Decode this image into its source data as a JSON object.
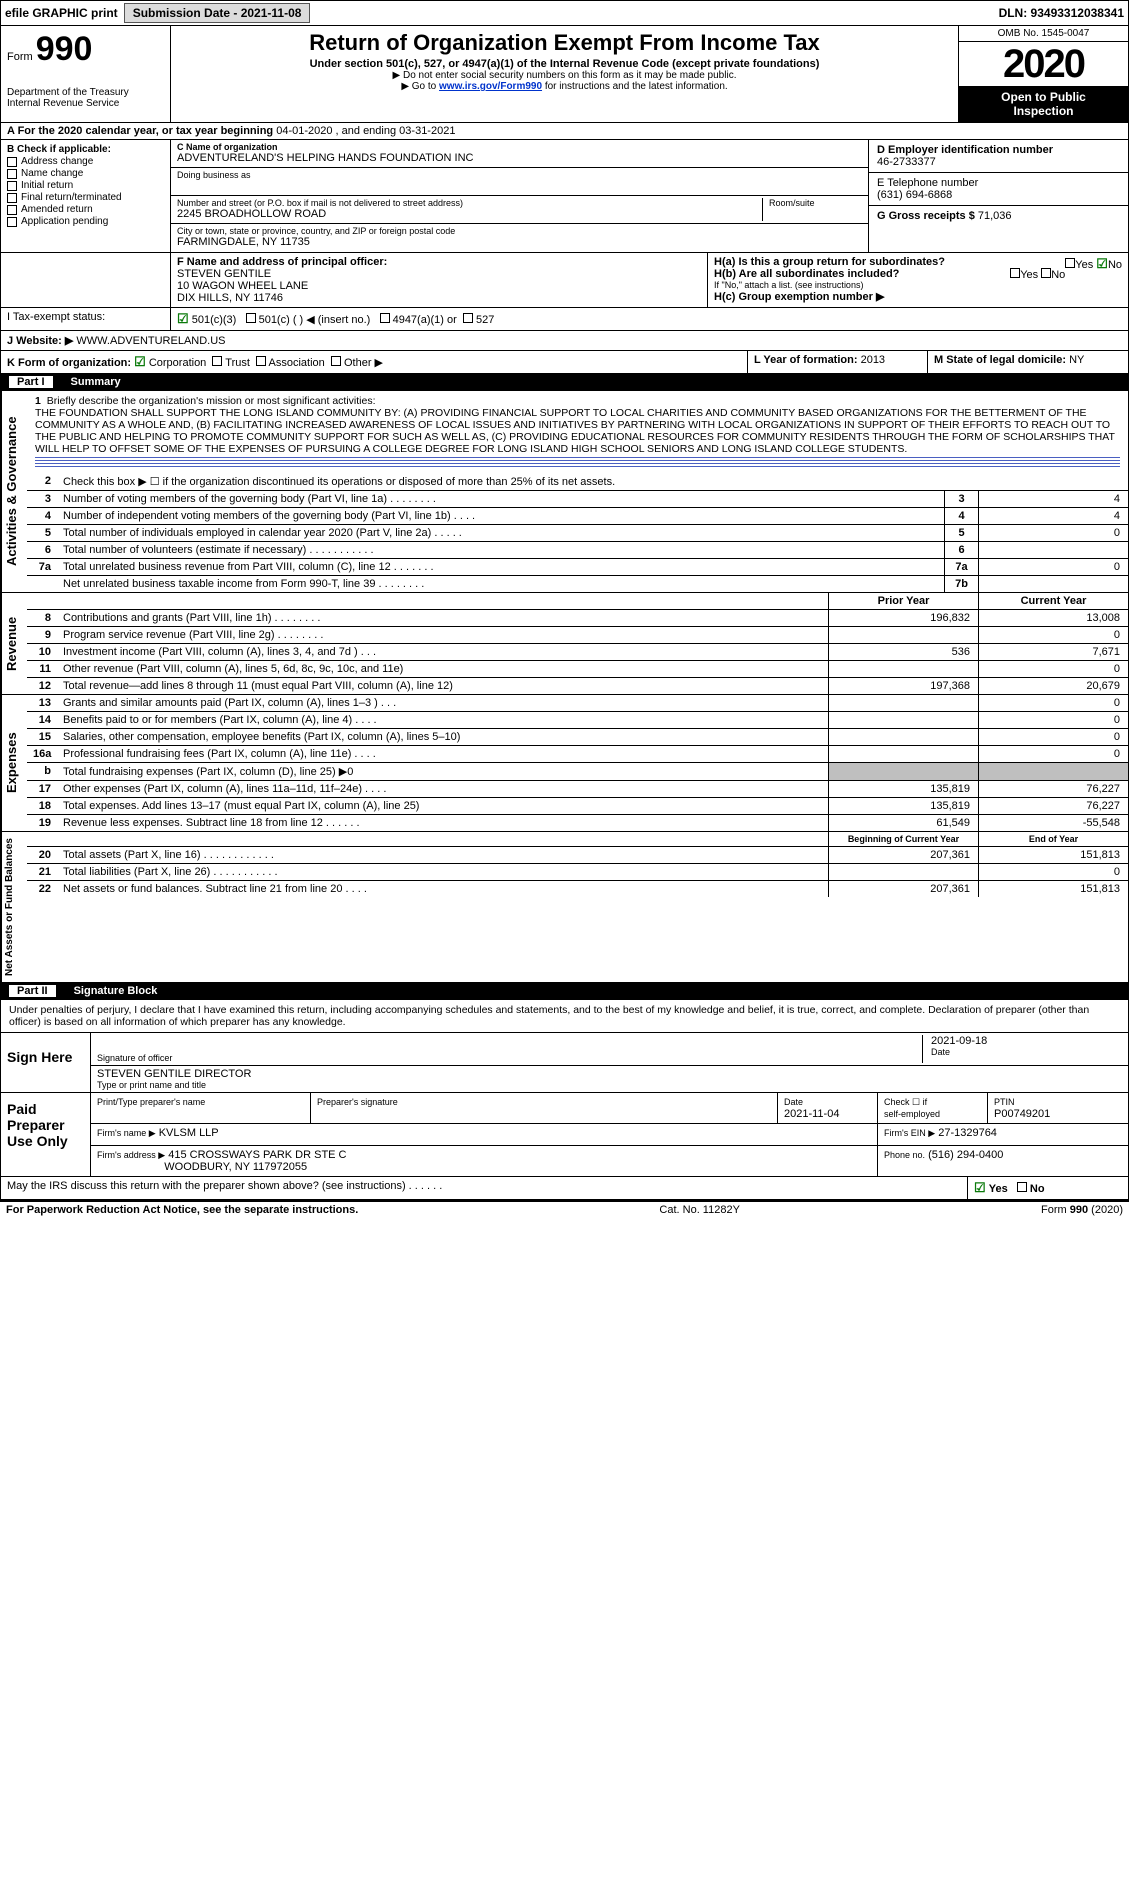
{
  "top": {
    "efile": "efile GRAPHIC print",
    "submission_label": "Submission Date - 2021-11-08",
    "dln": "DLN: 93493312038341"
  },
  "header": {
    "form_prefix": "Form",
    "form_no": "990",
    "dept1": "Department of the Treasury",
    "dept2": "Internal Revenue Service",
    "title": "Return of Organization Exempt From Income Tax",
    "subtitle": "Under section 501(c), 527, or 4947(a)(1) of the Internal Revenue Code (except private foundations)",
    "note1": "▶ Do not enter social security numbers on this form as it may be made public.",
    "note2_pre": "▶ Go to ",
    "note2_link": "www.irs.gov/Form990",
    "note2_post": " for instructions and the latest information.",
    "omb": "OMB No. 1545-0047",
    "year": "2020",
    "open1": "Open to Public",
    "open2": "Inspection"
  },
  "period": {
    "label_a": "A For the 2020 calendar year, or tax year beginning ",
    "begin": "04-01-2020",
    "mid": " , and ending ",
    "end": "03-31-2021"
  },
  "colB": {
    "title": "B Check if applicable:",
    "items": [
      "Address change",
      "Name change",
      "Initial return",
      "Final return/terminated",
      "Amended return",
      "Application pending"
    ]
  },
  "colC": {
    "name_label": "C Name of organization",
    "name": "ADVENTURELAND'S HELPING HANDS FOUNDATION INC",
    "dba_label": "Doing business as",
    "dba": "",
    "street_label": "Number and street (or P.O. box if mail is not delivered to street address)",
    "street": "2245 BROADHOLLOW ROAD",
    "room_label": "Room/suite",
    "city_label": "City or town, state or province, country, and ZIP or foreign postal code",
    "city": "FARMINGDALE, NY  11735"
  },
  "colD": {
    "d_label": "D Employer identification number",
    "ein": "46-2733377",
    "e_label": "E Telephone number",
    "phone": "(631) 694-6868",
    "g_label": "G Gross receipts $",
    "gross": "71,036"
  },
  "rowF": {
    "f_label": "F  Name and address of principal officer:",
    "name": "STEVEN GENTILE",
    "addr1": "10 WAGON WHEEL LANE",
    "addr2": "DIX HILLS, NY  11746"
  },
  "rowH": {
    "ha": "H(a)  Is this a group return for subordinates?",
    "hb": "H(b)  Are all subordinates included?",
    "hc_note": "If \"No,\" attach a list. (see instructions)",
    "hc": "H(c)  Group exemption number ▶",
    "yes": "Yes",
    "no": "No"
  },
  "rowI": {
    "label": "I  Tax-exempt status:",
    "opt1": "501(c)(3)",
    "opt2": "501(c) (   ) ◀ (insert no.)",
    "opt3": "4947(a)(1) or",
    "opt4": "527"
  },
  "rowJ": {
    "label": "J  Website: ▶",
    "val": "WWW.ADVENTURELAND.US"
  },
  "rowK": {
    "label": "K Form of organization:",
    "opts": [
      "Corporation",
      "Trust",
      "Association",
      "Other ▶"
    ]
  },
  "rowLM": {
    "l_label": "L Year of formation:",
    "l_val": "2013",
    "m_label": "M State of legal domicile:",
    "m_val": "NY"
  },
  "part1": {
    "tab": "Part I",
    "title": "Summary"
  },
  "mission": {
    "num": "1",
    "label": "Briefly describe the organization's mission or most significant activities:",
    "text": "THE FOUNDATION SHALL SUPPORT THE LONG ISLAND COMMUNITY BY: (A) PROVIDING FINANCIAL SUPPORT TO LOCAL CHARITIES AND COMMUNITY BASED ORGANIZATIONS FOR THE BETTERMENT OF THE COMMUNITY AS A WHOLE AND, (B) FACILITATING INCREASED AWARENESS OF LOCAL ISSUES AND INITIATIVES BY PARTNERING WITH LOCAL ORGANIZATIONS IN SUPPORT OF THEIR EFFORTS TO REACH OUT TO THE PUBLIC AND HELPING TO PROMOTE COMMUNITY SUPPORT FOR SUCH AS WELL AS, (C) PROVIDING EDUCATIONAL RESOURCES FOR COMMUNITY RESIDENTS THROUGH THE FORM OF SCHOLARSHIPS THAT WILL HELP TO OFFSET SOME OF THE EXPENSES OF PURSUING A COLLEGE DEGREE FOR LONG ISLAND HIGH SCHOOL SENIORS AND LONG ISLAND COLLEGE STUDENTS."
  },
  "activities": {
    "vlabel": "Activities & Governance",
    "line2": "Check this box ▶ ☐ if the organization discontinued its operations or disposed of more than 25% of its net assets.",
    "rows": [
      {
        "n": "3",
        "t": "Number of voting members of the governing body (Part VI, line 1a)  .    .    .    .    .    .    .    .",
        "m": "3",
        "v": "4"
      },
      {
        "n": "4",
        "t": "Number of independent voting members of the governing body (Part VI, line 1b)   .    .    .    .",
        "m": "4",
        "v": "4"
      },
      {
        "n": "5",
        "t": "Total number of individuals employed in calendar year 2020 (Part V, line 2a)  .    .    .    .    .",
        "m": "5",
        "v": "0"
      },
      {
        "n": "6",
        "t": "Total number of volunteers (estimate if necessary)  .    .    .    .    .    .    .    .    .    .    .",
        "m": "6",
        "v": ""
      },
      {
        "n": "7a",
        "t": "Total unrelated business revenue from Part VIII, column (C), line 12   .    .    .    .    .    .    .",
        "m": "7a",
        "v": "0"
      },
      {
        "n": "",
        "t": "Net unrelated business taxable income from Form 990-T, line 39  .    .    .    .    .    .    .    .",
        "m": "7b",
        "v": ""
      }
    ]
  },
  "revenue": {
    "vlabel": "Revenue",
    "header_prior": "Prior Year",
    "header_current": "Current Year",
    "rows": [
      {
        "n": "8",
        "t": "Contributions and grants (Part VIII, line 1h)   .    .    .    .    .    .    .    .",
        "p": "196,832",
        "c": "13,008"
      },
      {
        "n": "9",
        "t": "Program service revenue (Part VIII, line 2g)   .    .    .    .    .    .    .    .",
        "p": "",
        "c": "0"
      },
      {
        "n": "10",
        "t": "Investment income (Part VIII, column (A), lines 3, 4, and 7d )    .    .    .",
        "p": "536",
        "c": "7,671"
      },
      {
        "n": "11",
        "t": "Other revenue (Part VIII, column (A), lines 5, 6d, 8c, 9c, 10c, and 11e)",
        "p": "",
        "c": "0"
      },
      {
        "n": "12",
        "t": "Total revenue—add lines 8 through 11 (must equal Part VIII, column (A), line 12)",
        "p": "197,368",
        "c": "20,679"
      }
    ]
  },
  "expenses": {
    "vlabel": "Expenses",
    "rows": [
      {
        "n": "13",
        "t": "Grants and similar amounts paid (Part IX, column (A), lines 1–3 )   .    .    .",
        "p": "",
        "c": "0"
      },
      {
        "n": "14",
        "t": "Benefits paid to or for members (Part IX, column (A), line 4)  .    .    .    .",
        "p": "",
        "c": "0"
      },
      {
        "n": "15",
        "t": "Salaries, other compensation, employee benefits (Part IX, column (A), lines 5–10)",
        "p": "",
        "c": "0"
      },
      {
        "n": "16a",
        "t": "Professional fundraising fees (Part IX, column (A), line 11e)   .    .    .    .",
        "p": "",
        "c": "0"
      },
      {
        "n": "b",
        "t": "Total fundraising expenses (Part IX, column (D), line 25) ▶0",
        "p": "GREY",
        "c": "GREY"
      },
      {
        "n": "17",
        "t": "Other expenses (Part IX, column (A), lines 11a–11d, 11f–24e)   .    .    .    .",
        "p": "135,819",
        "c": "76,227"
      },
      {
        "n": "18",
        "t": "Total expenses. Add lines 13–17 (must equal Part IX, column (A), line 25)",
        "p": "135,819",
        "c": "76,227"
      },
      {
        "n": "19",
        "t": "Revenue less expenses. Subtract line 18 from line 12   .    .    .    .    .    .",
        "p": "61,549",
        "c": "-55,548"
      }
    ]
  },
  "netassets": {
    "vlabel": "Net Assets or Fund Balances",
    "header_begin": "Beginning of Current Year",
    "header_end": "End of Year",
    "rows": [
      {
        "n": "20",
        "t": "Total assets (Part X, line 16)  .    .    .    .    .    .    .    .    .    .    .    .",
        "p": "207,361",
        "c": "151,813"
      },
      {
        "n": "21",
        "t": "Total liabilities (Part X, line 26)   .    .    .    .    .    .    .    .    .    .    .",
        "p": "",
        "c": "0"
      },
      {
        "n": "22",
        "t": "Net assets or fund balances. Subtract line 21 from line 20    .    .    .    .",
        "p": "207,361",
        "c": "151,813"
      }
    ]
  },
  "part2": {
    "tab": "Part II",
    "title": "Signature Block",
    "penalty": "Under penalties of perjury, I declare that I have examined this return, including accompanying schedules and statements, and to the best of my knowledge and belief, it is true, correct, and complete. Declaration of preparer (other than officer) is based on all information of which preparer has any knowledge."
  },
  "sign": {
    "left": "Sign Here",
    "sig_label": "Signature of officer",
    "date_label": "Date",
    "date": "2021-09-18",
    "name": "STEVEN GENTILE DIRECTOR",
    "name_label": "Type or print name and title"
  },
  "paid": {
    "left1": "Paid",
    "left2": "Preparer",
    "left3": "Use Only",
    "h1": "Print/Type preparer's name",
    "h2": "Preparer's signature",
    "h3": "Date",
    "date": "2021-11-04",
    "h4a": "Check ☐ if",
    "h4b": "self-employed",
    "h5": "PTIN",
    "ptin": "P00749201",
    "firm_label": "Firm's name    ▶",
    "firm": "KVLSM LLP",
    "ein_label": "Firm's EIN ▶",
    "ein": "27-1329764",
    "addr_label": "Firm's address ▶",
    "addr1": "415 CROSSWAYS PARK DR STE C",
    "addr2": "WOODBURY, NY  117972055",
    "phone_label": "Phone no.",
    "phone": "(516) 294-0400"
  },
  "discuss": {
    "text": "May the IRS discuss this return with the preparer shown above? (see instructions)    .    .    .    .    .    .",
    "yes": "Yes",
    "no": "No"
  },
  "footer": {
    "left": "For Paperwork Reduction Act Notice, see the separate instructions.",
    "mid": "Cat. No. 11282Y",
    "right": "Form 990 (2020)"
  },
  "colors": {
    "link": "#0033cc",
    "blueline": "#4a5fc1",
    "grey": "#bfbfbf",
    "green": "#0a7a0a"
  }
}
